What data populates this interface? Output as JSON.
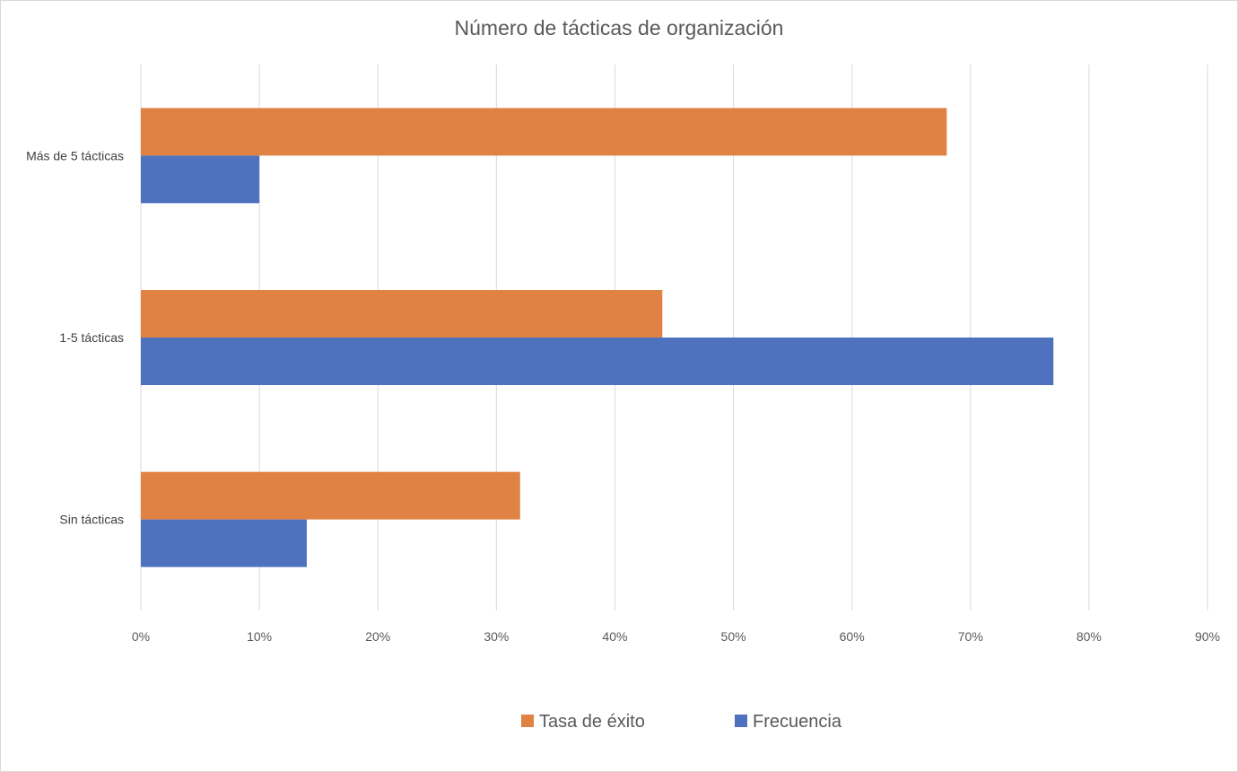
{
  "chart_data": {
    "type": "bar",
    "orientation": "horizontal",
    "title": "Número de tácticas de organización",
    "xlabel": "",
    "ylabel": "",
    "categories": [
      "Más de 5 tácticas",
      "1-5 tácticas",
      "Sin tácticas"
    ],
    "series": [
      {
        "name": "Tasa de éxito",
        "color": "#DF8244",
        "values": [
          68,
          44,
          32
        ]
      },
      {
        "name": "Frecuencia",
        "color": "#4F72BE",
        "values": [
          10,
          77,
          14
        ]
      }
    ],
    "xlim": [
      0,
      90
    ],
    "xticks": [
      "0%",
      "10%",
      "20%",
      "30%",
      "40%",
      "50%",
      "60%",
      "70%",
      "80%",
      "90%"
    ],
    "value_unit": "%",
    "grid": true,
    "legend": "bottom"
  }
}
